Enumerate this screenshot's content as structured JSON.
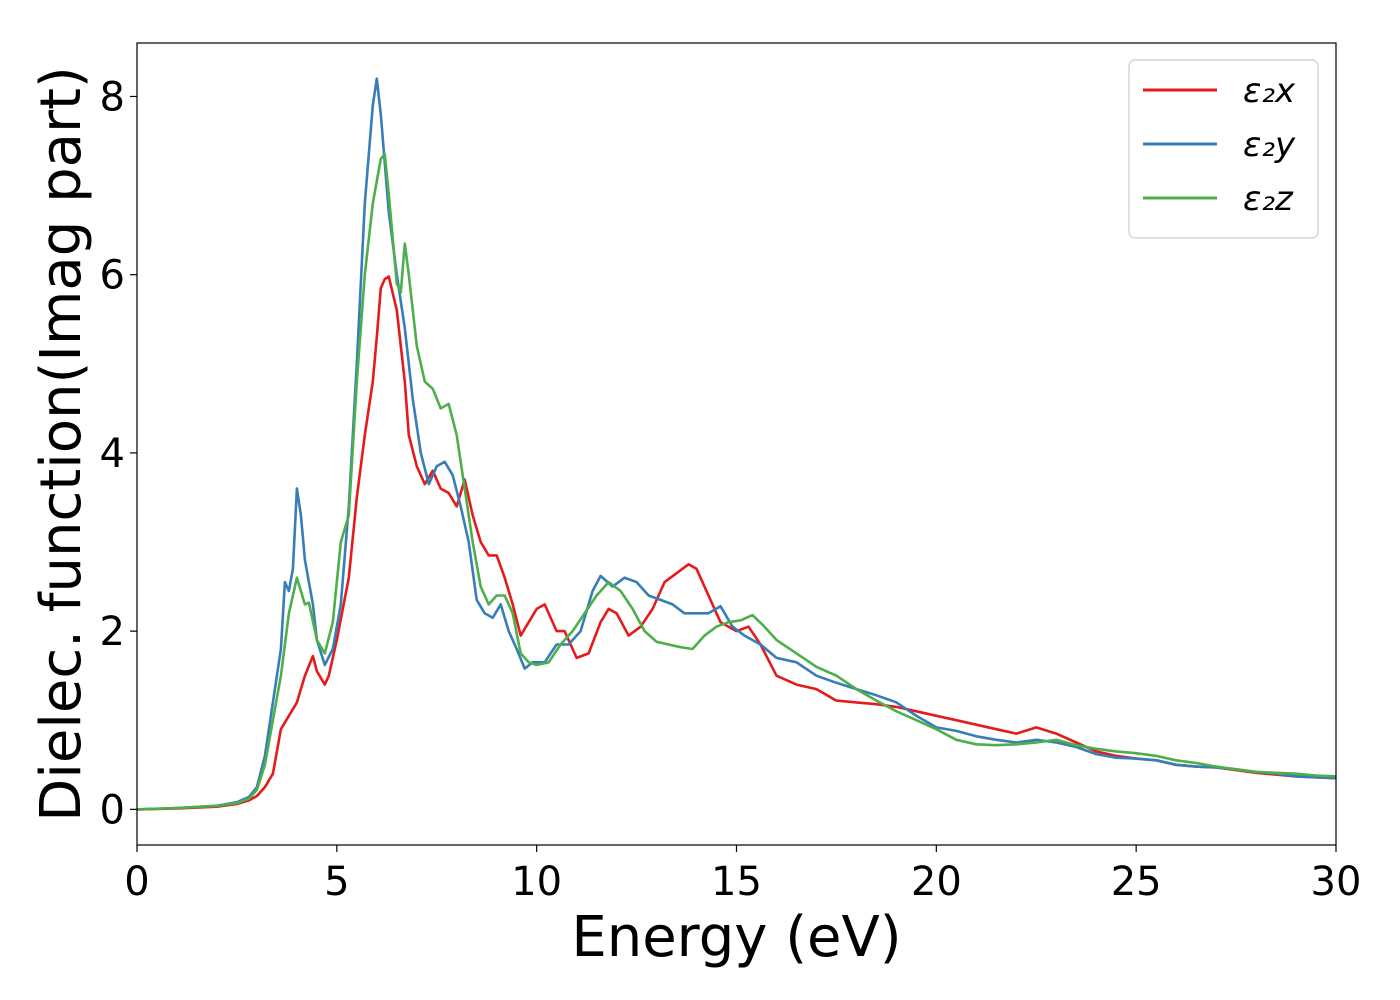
{
  "chart_data": {
    "type": "line",
    "title": "",
    "xlabel": "Energy (eV)",
    "ylabel": "Dielec. function(Imag part)",
    "xlim": [
      0,
      30
    ],
    "ylim": [
      -0.4,
      8.6
    ],
    "xticks": [
      0,
      5,
      10,
      15,
      20,
      25,
      30
    ],
    "yticks": [
      0,
      2,
      4,
      6,
      8
    ],
    "grid": false,
    "legend_position": "top-right",
    "series": [
      {
        "name": "ε₂x",
        "color": "#e41a1c",
        "points": [
          [
            0,
            0
          ],
          [
            1,
            0.01
          ],
          [
            2,
            0.03
          ],
          [
            2.5,
            0.06
          ],
          [
            2.8,
            0.1
          ],
          [
            3.0,
            0.15
          ],
          [
            3.2,
            0.25
          ],
          [
            3.4,
            0.4
          ],
          [
            3.6,
            0.9
          ],
          [
            3.8,
            1.05
          ],
          [
            4.0,
            1.2
          ],
          [
            4.2,
            1.5
          ],
          [
            4.4,
            1.72
          ],
          [
            4.5,
            1.55
          ],
          [
            4.7,
            1.4
          ],
          [
            4.8,
            1.5
          ],
          [
            5.0,
            1.9
          ],
          [
            5.3,
            2.6
          ],
          [
            5.5,
            3.5
          ],
          [
            5.7,
            4.2
          ],
          [
            5.9,
            4.8
          ],
          [
            6.0,
            5.3
          ],
          [
            6.1,
            5.85
          ],
          [
            6.2,
            5.95
          ],
          [
            6.3,
            5.98
          ],
          [
            6.5,
            5.6
          ],
          [
            6.7,
            4.8
          ],
          [
            6.8,
            4.2
          ],
          [
            7.0,
            3.85
          ],
          [
            7.2,
            3.65
          ],
          [
            7.4,
            3.8
          ],
          [
            7.6,
            3.6
          ],
          [
            7.8,
            3.55
          ],
          [
            8.0,
            3.4
          ],
          [
            8.2,
            3.7
          ],
          [
            8.4,
            3.3
          ],
          [
            8.6,
            3.0
          ],
          [
            8.8,
            2.85
          ],
          [
            9.0,
            2.85
          ],
          [
            9.2,
            2.6
          ],
          [
            9.4,
            2.3
          ],
          [
            9.6,
            1.95
          ],
          [
            9.8,
            2.1
          ],
          [
            10.0,
            2.25
          ],
          [
            10.2,
            2.3
          ],
          [
            10.5,
            2.0
          ],
          [
            10.7,
            2.0
          ],
          [
            11.0,
            1.7
          ],
          [
            11.3,
            1.75
          ],
          [
            11.6,
            2.1
          ],
          [
            11.8,
            2.25
          ],
          [
            12.0,
            2.2
          ],
          [
            12.3,
            1.95
          ],
          [
            12.6,
            2.05
          ],
          [
            12.9,
            2.25
          ],
          [
            13.2,
            2.55
          ],
          [
            13.5,
            2.65
          ],
          [
            13.8,
            2.75
          ],
          [
            14.0,
            2.7
          ],
          [
            14.3,
            2.4
          ],
          [
            14.6,
            2.1
          ],
          [
            15.0,
            2.0
          ],
          [
            15.3,
            2.05
          ],
          [
            15.6,
            1.85
          ],
          [
            16.0,
            1.5
          ],
          [
            16.5,
            1.4
          ],
          [
            17.0,
            1.35
          ],
          [
            17.5,
            1.22
          ],
          [
            18.0,
            1.2
          ],
          [
            18.5,
            1.18
          ],
          [
            19.0,
            1.15
          ],
          [
            19.5,
            1.1
          ],
          [
            20.0,
            1.05
          ],
          [
            20.5,
            1.0
          ],
          [
            21.0,
            0.95
          ],
          [
            21.5,
            0.9
          ],
          [
            22.0,
            0.85
          ],
          [
            22.5,
            0.92
          ],
          [
            23.0,
            0.85
          ],
          [
            23.5,
            0.75
          ],
          [
            24.0,
            0.65
          ],
          [
            24.5,
            0.6
          ],
          [
            25.0,
            0.57
          ],
          [
            25.5,
            0.55
          ],
          [
            26.0,
            0.5
          ],
          [
            26.5,
            0.48
          ],
          [
            27.0,
            0.47
          ],
          [
            27.5,
            0.44
          ],
          [
            28.0,
            0.41
          ],
          [
            28.5,
            0.39
          ],
          [
            29.0,
            0.37
          ],
          [
            29.5,
            0.36
          ],
          [
            30.0,
            0.35
          ]
        ]
      },
      {
        "name": "ε₂y",
        "color": "#377eb8",
        "points": [
          [
            0,
            0
          ],
          [
            1,
            0.015
          ],
          [
            2,
            0.04
          ],
          [
            2.5,
            0.08
          ],
          [
            2.8,
            0.14
          ],
          [
            3.0,
            0.25
          ],
          [
            3.2,
            0.6
          ],
          [
            3.4,
            1.2
          ],
          [
            3.6,
            1.8
          ],
          [
            3.7,
            2.55
          ],
          [
            3.8,
            2.45
          ],
          [
            3.9,
            2.7
          ],
          [
            4.0,
            3.6
          ],
          [
            4.1,
            3.3
          ],
          [
            4.2,
            2.8
          ],
          [
            4.4,
            2.3
          ],
          [
            4.5,
            1.9
          ],
          [
            4.7,
            1.62
          ],
          [
            4.9,
            1.8
          ],
          [
            5.1,
            2.3
          ],
          [
            5.3,
            3.4
          ],
          [
            5.5,
            5.0
          ],
          [
            5.7,
            6.8
          ],
          [
            5.9,
            7.9
          ],
          [
            6.0,
            8.2
          ],
          [
            6.1,
            7.8
          ],
          [
            6.3,
            6.7
          ],
          [
            6.5,
            6.0
          ],
          [
            6.7,
            5.4
          ],
          [
            6.9,
            4.6
          ],
          [
            7.1,
            4.0
          ],
          [
            7.3,
            3.65
          ],
          [
            7.5,
            3.85
          ],
          [
            7.7,
            3.9
          ],
          [
            7.9,
            3.75
          ],
          [
            8.1,
            3.4
          ],
          [
            8.3,
            3.0
          ],
          [
            8.5,
            2.35
          ],
          [
            8.7,
            2.2
          ],
          [
            8.9,
            2.15
          ],
          [
            9.1,
            2.3
          ],
          [
            9.3,
            2.0
          ],
          [
            9.5,
            1.8
          ],
          [
            9.7,
            1.58
          ],
          [
            9.9,
            1.65
          ],
          [
            10.2,
            1.65
          ],
          [
            10.5,
            1.85
          ],
          [
            10.8,
            1.85
          ],
          [
            11.1,
            2.0
          ],
          [
            11.4,
            2.45
          ],
          [
            11.6,
            2.62
          ],
          [
            11.9,
            2.5
          ],
          [
            12.2,
            2.6
          ],
          [
            12.5,
            2.55
          ],
          [
            12.8,
            2.4
          ],
          [
            13.1,
            2.35
          ],
          [
            13.4,
            2.3
          ],
          [
            13.7,
            2.2
          ],
          [
            14.0,
            2.2
          ],
          [
            14.3,
            2.2
          ],
          [
            14.6,
            2.28
          ],
          [
            14.9,
            2.05
          ],
          [
            15.2,
            1.95
          ],
          [
            15.6,
            1.85
          ],
          [
            16.0,
            1.7
          ],
          [
            16.5,
            1.65
          ],
          [
            17.0,
            1.5
          ],
          [
            17.5,
            1.42
          ],
          [
            18.0,
            1.35
          ],
          [
            18.5,
            1.28
          ],
          [
            19.0,
            1.2
          ],
          [
            19.5,
            1.05
          ],
          [
            20.0,
            0.92
          ],
          [
            20.5,
            0.88
          ],
          [
            21.0,
            0.82
          ],
          [
            21.5,
            0.78
          ],
          [
            22.0,
            0.75
          ],
          [
            22.5,
            0.78
          ],
          [
            23.0,
            0.75
          ],
          [
            23.5,
            0.7
          ],
          [
            24.0,
            0.62
          ],
          [
            24.5,
            0.58
          ],
          [
            25.0,
            0.57
          ],
          [
            25.5,
            0.55
          ],
          [
            26.0,
            0.5
          ],
          [
            26.5,
            0.48
          ],
          [
            27.0,
            0.47
          ],
          [
            27.5,
            0.45
          ],
          [
            28.0,
            0.42
          ],
          [
            28.5,
            0.4
          ],
          [
            29.0,
            0.37
          ],
          [
            29.5,
            0.36
          ],
          [
            30.0,
            0.35
          ]
        ]
      },
      {
        "name": "ε₂z",
        "color": "#4daf4a",
        "points": [
          [
            0,
            0
          ],
          [
            1,
            0.015
          ],
          [
            2,
            0.04
          ],
          [
            2.5,
            0.07
          ],
          [
            2.8,
            0.12
          ],
          [
            3.0,
            0.22
          ],
          [
            3.2,
            0.5
          ],
          [
            3.4,
            1.0
          ],
          [
            3.6,
            1.5
          ],
          [
            3.8,
            2.2
          ],
          [
            4.0,
            2.6
          ],
          [
            4.2,
            2.3
          ],
          [
            4.3,
            2.32
          ],
          [
            4.5,
            1.9
          ],
          [
            4.7,
            1.75
          ],
          [
            4.9,
            2.1
          ],
          [
            5.1,
            3.0
          ],
          [
            5.3,
            3.3
          ],
          [
            5.5,
            4.8
          ],
          [
            5.7,
            6.0
          ],
          [
            5.9,
            6.8
          ],
          [
            6.1,
            7.3
          ],
          [
            6.2,
            7.35
          ],
          [
            6.3,
            6.9
          ],
          [
            6.5,
            5.9
          ],
          [
            6.6,
            5.8
          ],
          [
            6.7,
            6.35
          ],
          [
            6.8,
            6.0
          ],
          [
            7.0,
            5.2
          ],
          [
            7.2,
            4.8
          ],
          [
            7.4,
            4.72
          ],
          [
            7.6,
            4.5
          ],
          [
            7.8,
            4.55
          ],
          [
            8.0,
            4.2
          ],
          [
            8.2,
            3.6
          ],
          [
            8.4,
            3.0
          ],
          [
            8.6,
            2.5
          ],
          [
            8.8,
            2.3
          ],
          [
            9.0,
            2.4
          ],
          [
            9.2,
            2.4
          ],
          [
            9.4,
            2.2
          ],
          [
            9.6,
            1.75
          ],
          [
            9.8,
            1.65
          ],
          [
            10.0,
            1.62
          ],
          [
            10.3,
            1.65
          ],
          [
            10.6,
            1.85
          ],
          [
            10.9,
            2.0
          ],
          [
            11.2,
            2.2
          ],
          [
            11.5,
            2.4
          ],
          [
            11.8,
            2.55
          ],
          [
            12.1,
            2.45
          ],
          [
            12.4,
            2.25
          ],
          [
            12.7,
            2.0
          ],
          [
            13.0,
            1.88
          ],
          [
            13.3,
            1.85
          ],
          [
            13.6,
            1.82
          ],
          [
            13.9,
            1.8
          ],
          [
            14.2,
            1.95
          ],
          [
            14.5,
            2.05
          ],
          [
            14.8,
            2.1
          ],
          [
            15.1,
            2.12
          ],
          [
            15.4,
            2.18
          ],
          [
            15.7,
            2.05
          ],
          [
            16.0,
            1.9
          ],
          [
            16.5,
            1.75
          ],
          [
            17.0,
            1.6
          ],
          [
            17.5,
            1.5
          ],
          [
            18.0,
            1.35
          ],
          [
            18.5,
            1.22
          ],
          [
            19.0,
            1.1
          ],
          [
            19.5,
            1.0
          ],
          [
            20.0,
            0.9
          ],
          [
            20.5,
            0.78
          ],
          [
            21.0,
            0.73
          ],
          [
            21.5,
            0.72
          ],
          [
            22.0,
            0.73
          ],
          [
            22.5,
            0.75
          ],
          [
            23.0,
            0.78
          ],
          [
            23.5,
            0.72
          ],
          [
            24.0,
            0.68
          ],
          [
            24.5,
            0.65
          ],
          [
            25.0,
            0.63
          ],
          [
            25.5,
            0.6
          ],
          [
            26.0,
            0.55
          ],
          [
            26.5,
            0.52
          ],
          [
            27.0,
            0.48
          ],
          [
            27.5,
            0.45
          ],
          [
            28.0,
            0.42
          ],
          [
            28.5,
            0.41
          ],
          [
            29.0,
            0.4
          ],
          [
            29.5,
            0.38
          ],
          [
            30.0,
            0.37
          ]
        ]
      }
    ]
  }
}
